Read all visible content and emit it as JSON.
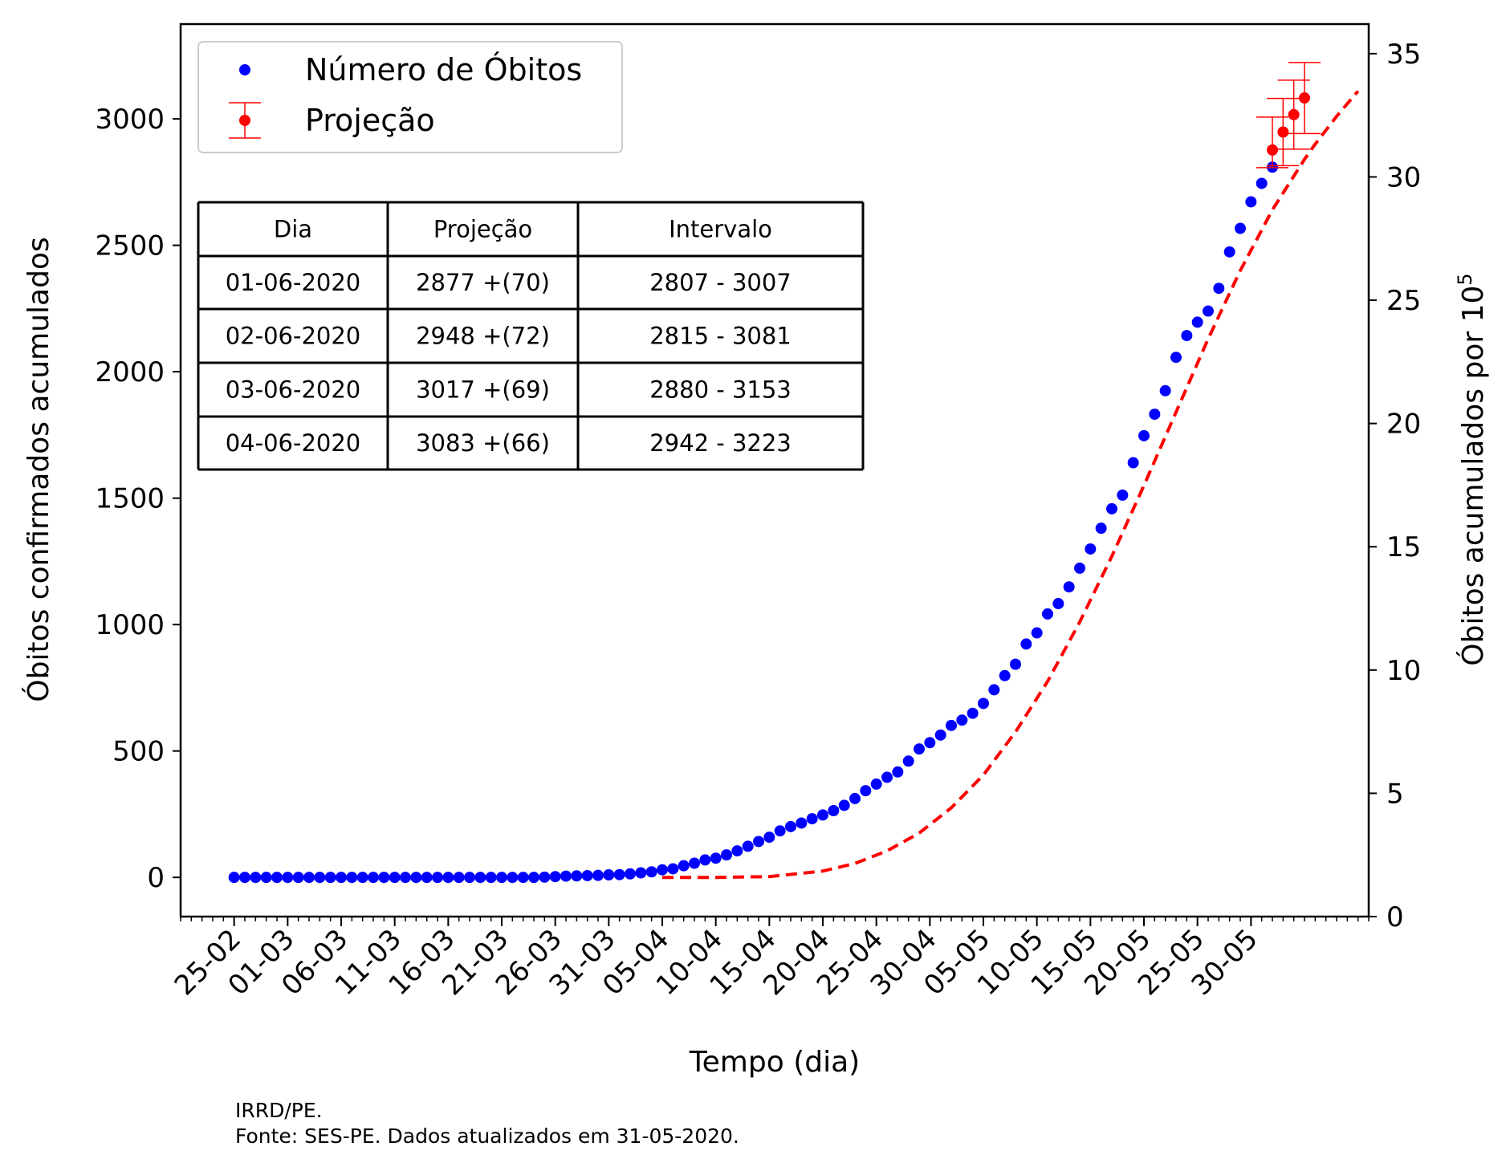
{
  "chart_data": {
    "type": "scatter",
    "xlabel": "Tempo (dia)",
    "ylabel": "Óbitos confirmados acumulados",
    "ylabel_right": "Óbitos acumulados por 10",
    "ylabel_right_exp": "5",
    "x_start_date": "2020-02-25",
    "xlim_days": [
      -5,
      106
    ],
    "x_tick_labels": [
      "25-02",
      "01-03",
      "06-03",
      "11-03",
      "16-03",
      "21-03",
      "26-03",
      "31-03",
      "05-04",
      "10-04",
      "15-04",
      "20-04",
      "25-04",
      "30-04",
      "05-05",
      "10-05",
      "15-05",
      "20-05",
      "25-05",
      "30-05"
    ],
    "ylim": [
      -155,
      3375
    ],
    "yticks": [
      0,
      500,
      1000,
      1500,
      2000,
      2500,
      3000
    ],
    "ylim_right": [
      0,
      36.2
    ],
    "yticks_right": [
      0,
      5,
      10,
      15,
      20,
      25,
      30,
      35
    ],
    "series": [
      {
        "name": "Número de Óbitos",
        "color": "#0000ff",
        "marker": "dot",
        "values": [
          0,
          0,
          0,
          0,
          0,
          0,
          0,
          0,
          0,
          0,
          0,
          0,
          0,
          0,
          0,
          0,
          0,
          0,
          0,
          0,
          0,
          0,
          0,
          0,
          0,
          0,
          0,
          0,
          0,
          1,
          3,
          5,
          6,
          7,
          8,
          10,
          11,
          14,
          18,
          22,
          30,
          34,
          46,
          56,
          69,
          76,
          89,
          105,
          123,
          142,
          159,
          184,
          201,
          215,
          232,
          247,
          264,
          285,
          312,
          343,
          369,
          396,
          417,
          460,
          508,
          533,
          563,
          601,
          622,
          649,
          688,
          742,
          798,
          843,
          923,
          967,
          1042,
          1083,
          1149,
          1223,
          1299,
          1381,
          1458,
          1512,
          1640,
          1747,
          1832,
          1925,
          2057,
          2143,
          2196,
          2240,
          2330,
          2474,
          2567,
          2672,
          2745,
          2809
        ]
      },
      {
        "name": "Projeção",
        "color": "#ff0000",
        "marker": "dot-errorbar",
        "x": [
          "01-06-2020",
          "02-06-2020",
          "03-06-2020",
          "04-06-2020"
        ],
        "values": [
          2877,
          2948,
          3017,
          3083
        ],
        "lower": [
          2807,
          2815,
          2880,
          2942
        ],
        "upper": [
          3007,
          3081,
          3153,
          3223
        ]
      },
      {
        "name": "fit",
        "color": "#ff0000",
        "style": "dashed",
        "x_days": [
          40,
          45,
          50,
          55,
          58,
          61,
          64,
          67,
          70,
          73,
          76,
          79,
          82,
          85,
          88,
          91,
          94,
          97,
          100,
          101,
          102,
          103,
          104,
          105
        ],
        "values": [
          0,
          0,
          3,
          25,
          55,
          105,
          175,
          275,
          405,
          575,
          775,
          1010,
          1270,
          1550,
          1840,
          2130,
          2400,
          2640,
          2840,
          2900,
          2955,
          3010,
          3060,
          3110
        ]
      }
    ],
    "legend": {
      "position": "upper-left",
      "entries": [
        "Número de Óbitos",
        "Projeção"
      ]
    },
    "table": {
      "headers": [
        "Dia",
        "Projeção",
        "Intervalo"
      ],
      "rows": [
        [
          "01-06-2020",
          "2877 +(70)",
          "2807 - 3007"
        ],
        [
          "02-06-2020",
          "2948 +(72)",
          "2815 - 3081"
        ],
        [
          "03-06-2020",
          "3017 +(69)",
          "2880 - 3153"
        ],
        [
          "04-06-2020",
          "3083 +(66)",
          "2942 - 3223"
        ]
      ]
    }
  },
  "footer": {
    "line1": "IRRD/PE.",
    "line2": "Fonte: SES-PE. Dados atualizados em 31-05-2020."
  }
}
